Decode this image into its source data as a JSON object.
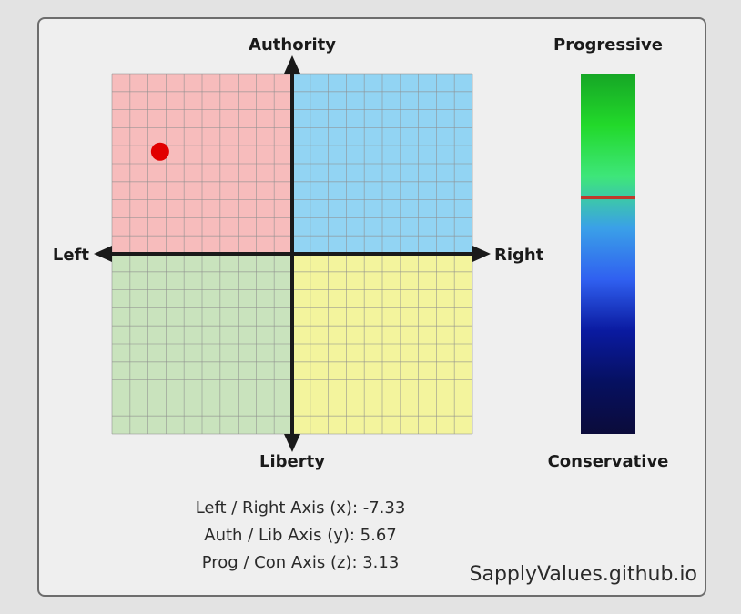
{
  "chart_data": {
    "type": "scatter",
    "title": "",
    "compass": {
      "labels": {
        "top": "Authority",
        "bottom": "Liberty",
        "left": "Left",
        "right": "Right"
      },
      "xlim": [
        -10,
        10
      ],
      "ylim": [
        -10,
        10
      ],
      "grid": true,
      "quadrant_colors": {
        "top_left": "#f7bcbc",
        "top_right": "#92d4f3",
        "bottom_left": "#c9e3bd",
        "bottom_right": "#f3f49d"
      },
      "point": {
        "x": -7.33,
        "y": 5.67,
        "color": "#e10000"
      }
    },
    "scale": {
      "top_label": "Progressive",
      "bottom_label": "Conservative",
      "zlim": [
        -10,
        10
      ],
      "value": 3.13,
      "marker_color": "#c0392b",
      "gradient": [
        "#16a626",
        "#22d92a",
        "#3ee67a",
        "#3aa0e8",
        "#3060f0",
        "#0a1aa0",
        "#061060",
        "#0b0b3a"
      ]
    },
    "readouts": [
      "Left / Right Axis (x): -7.33",
      "Auth / Lib Axis (y): 5.67",
      "Prog / Con Axis (z): 3.13"
    ]
  },
  "watermark": "SapplyValues.github.io"
}
